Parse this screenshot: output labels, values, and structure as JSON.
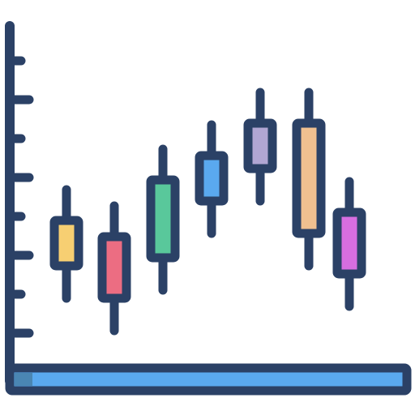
{
  "icon": {
    "name": "candlestick-chart-icon",
    "outline_color": "#2b4166",
    "base_bar_color": "#5aa9ef",
    "base_bar_accent_color": "#4a86b3",
    "background_color": "#ffffff"
  },
  "candles": [
    {
      "id": "candle-1",
      "body_color": "#f7cf72"
    },
    {
      "id": "candle-2",
      "body_color": "#ec6d82"
    },
    {
      "id": "candle-3",
      "body_color": "#59c89b"
    },
    {
      "id": "candle-4",
      "body_color": "#5aa9ef"
    },
    {
      "id": "candle-5",
      "body_color": "#b1a6d3"
    },
    {
      "id": "candle-6",
      "body_color": "#f0c090"
    },
    {
      "id": "candle-7",
      "body_color": "#d76ee0"
    }
  ]
}
